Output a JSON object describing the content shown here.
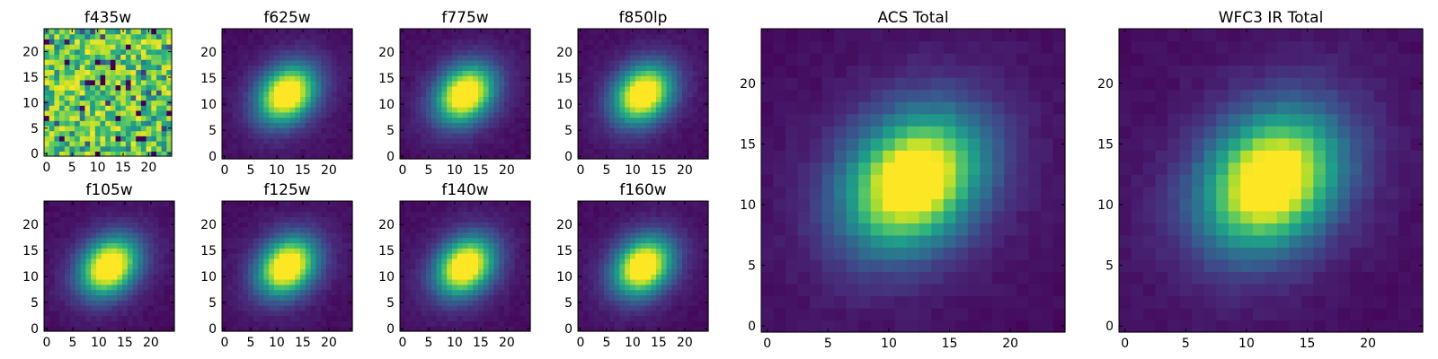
{
  "chart_data": [
    {
      "type": "heatmap",
      "title": "f435w",
      "profile": "noise",
      "grid_size": 25,
      "xticks": [
        0,
        5,
        10,
        15,
        20
      ],
      "yticks": [
        0,
        5,
        10,
        15,
        20
      ],
      "xlim": [
        -0.5,
        24.5
      ],
      "ylim": [
        -0.5,
        24.5
      ],
      "colormap": "viridis",
      "peak": [
        12,
        12
      ]
    },
    {
      "type": "heatmap",
      "title": "f625w",
      "profile": "source",
      "grid_size": 25,
      "xticks": [
        0,
        5,
        10,
        15,
        20
      ],
      "yticks": [
        0,
        5,
        10,
        15,
        20
      ],
      "xlim": [
        -0.5,
        24.5
      ],
      "ylim": [
        -0.5,
        24.5
      ],
      "colormap": "viridis",
      "peak": [
        12,
        12
      ]
    },
    {
      "type": "heatmap",
      "title": "f775w",
      "profile": "source",
      "grid_size": 25,
      "xticks": [
        0,
        5,
        10,
        15,
        20
      ],
      "yticks": [
        0,
        5,
        10,
        15,
        20
      ],
      "xlim": [
        -0.5,
        24.5
      ],
      "ylim": [
        -0.5,
        24.5
      ],
      "colormap": "viridis",
      "peak": [
        12,
        12
      ]
    },
    {
      "type": "heatmap",
      "title": "f850lp",
      "profile": "source",
      "grid_size": 25,
      "xticks": [
        0,
        5,
        10,
        15,
        20
      ],
      "yticks": [
        0,
        5,
        10,
        15,
        20
      ],
      "xlim": [
        -0.5,
        24.5
      ],
      "ylim": [
        -0.5,
        24.5
      ],
      "colormap": "viridis",
      "peak": [
        12,
        12
      ]
    },
    {
      "type": "heatmap",
      "title": "f105w",
      "profile": "source",
      "grid_size": 25,
      "xticks": [
        0,
        5,
        10,
        15,
        20
      ],
      "yticks": [
        0,
        5,
        10,
        15,
        20
      ],
      "xlim": [
        -0.5,
        24.5
      ],
      "ylim": [
        -0.5,
        24.5
      ],
      "colormap": "viridis",
      "peak": [
        12,
        12
      ]
    },
    {
      "type": "heatmap",
      "title": "f125w",
      "profile": "source",
      "grid_size": 25,
      "xticks": [
        0,
        5,
        10,
        15,
        20
      ],
      "yticks": [
        0,
        5,
        10,
        15,
        20
      ],
      "xlim": [
        -0.5,
        24.5
      ],
      "ylim": [
        -0.5,
        24.5
      ],
      "colormap": "viridis",
      "peak": [
        12,
        12
      ]
    },
    {
      "type": "heatmap",
      "title": "f140w",
      "profile": "source",
      "grid_size": 25,
      "xticks": [
        0,
        5,
        10,
        15,
        20
      ],
      "yticks": [
        0,
        5,
        10,
        15,
        20
      ],
      "xlim": [
        -0.5,
        24.5
      ],
      "ylim": [
        -0.5,
        24.5
      ],
      "colormap": "viridis",
      "peak": [
        12,
        12
      ]
    },
    {
      "type": "heatmap",
      "title": "f160w",
      "profile": "source",
      "grid_size": 25,
      "xticks": [
        0,
        5,
        10,
        15,
        20
      ],
      "yticks": [
        0,
        5,
        10,
        15,
        20
      ],
      "xlim": [
        -0.5,
        24.5
      ],
      "ylim": [
        -0.5,
        24.5
      ],
      "colormap": "viridis",
      "peak": [
        12,
        12
      ]
    },
    {
      "type": "heatmap",
      "title": "ACS Total",
      "profile": "source",
      "grid_size": 25,
      "xticks": [
        0,
        5,
        10,
        15,
        20
      ],
      "yticks": [
        0,
        5,
        10,
        15,
        20
      ],
      "xlim": [
        -0.5,
        24.5
      ],
      "ylim": [
        -0.5,
        24.5
      ],
      "colormap": "viridis",
      "peak": [
        12,
        12
      ]
    },
    {
      "type": "heatmap",
      "title": "WFC3 IR Total",
      "profile": "source",
      "grid_size": 25,
      "xticks": [
        0,
        5,
        10,
        15,
        20
      ],
      "yticks": [
        0,
        5,
        10,
        15,
        20
      ],
      "xlim": [
        -0.5,
        24.5
      ],
      "ylim": [
        -0.5,
        24.5
      ],
      "colormap": "viridis",
      "peak": [
        12,
        12
      ]
    }
  ]
}
